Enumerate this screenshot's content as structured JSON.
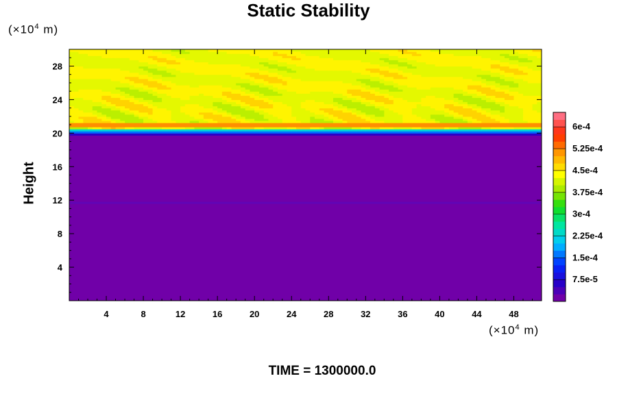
{
  "chart_data": {
    "type": "heatmap",
    "title": "Static Stability",
    "ylabel": "Height",
    "x_unit": "(×10",
    "x_unit_exp": "4",
    "x_unit_end": " m)",
    "y_unit": "(×10",
    "y_unit_exp": "4",
    "y_unit_end": " m)",
    "footer": "TIME = 1300000.0",
    "xlim": [
      0,
      51
    ],
    "ylim": [
      0,
      30
    ],
    "xticks": [
      4,
      8,
      12,
      16,
      20,
      24,
      28,
      32,
      36,
      40,
      44,
      48
    ],
    "yticks": [
      4,
      8,
      12,
      16,
      20,
      24,
      28
    ],
    "xtick_labels": [
      "4",
      "8",
      "12",
      "16",
      "20",
      "24",
      "28",
      "32",
      "36",
      "40",
      "44",
      "48"
    ],
    "ytick_labels": [
      "4",
      "8",
      "12",
      "16",
      "20",
      "24",
      "28"
    ],
    "colorbar": {
      "min": 0,
      "max": 0.00065,
      "levels": 26,
      "labels": [
        "6e-4",
        "5.25e-4",
        "4.5e-4",
        "3.75e-4",
        "3e-4",
        "2.25e-4",
        "1.5e-4",
        "7.5e-5"
      ],
      "label_values": [
        0.0006,
        0.000525,
        0.00045,
        0.000375,
        0.0003,
        0.000225,
        0.00015,
        7.5e-05
      ]
    },
    "field_description": {
      "lower_layer_value": 0.0,
      "lower_layer_top": 19.8,
      "peak_band_height": 21.0,
      "peak_band_value": 0.00055,
      "upper_layer_value": 0.00045
    },
    "colors": {
      "low": "#7000a8",
      "high": "#ffff00",
      "peak": "#ff2000"
    }
  }
}
